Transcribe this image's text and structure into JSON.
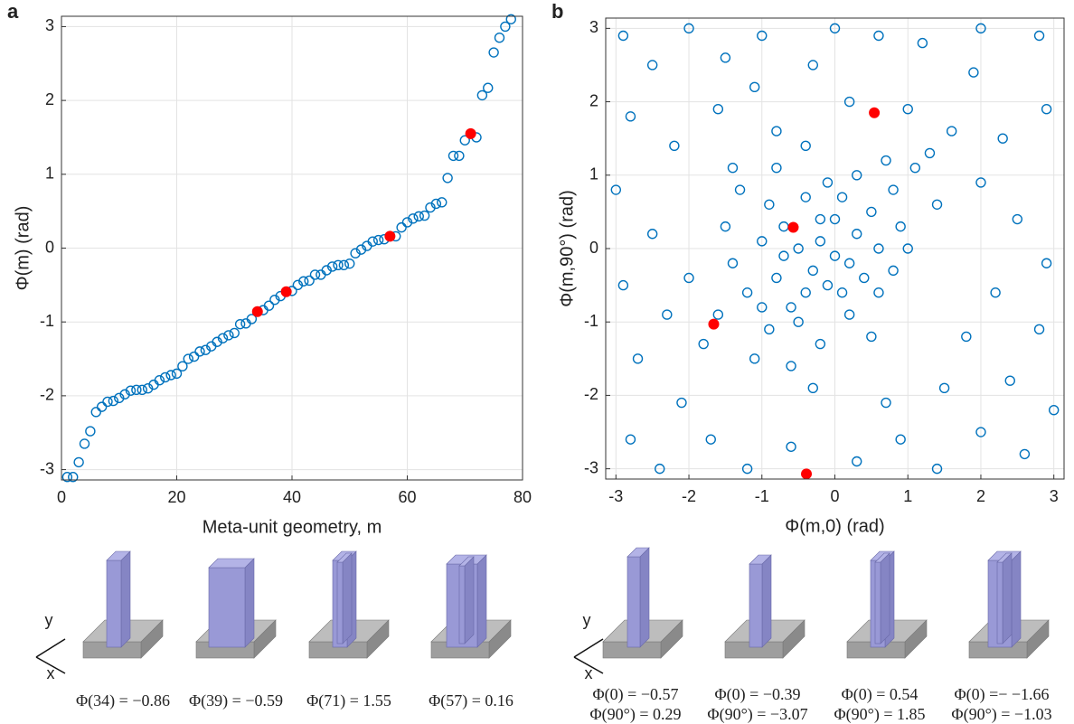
{
  "chart_data": [
    {
      "type": "scatter",
      "panel_label": "a",
      "xlabel": "Meta-unit geometry, m",
      "ylabel": "Φ(m) (rad)",
      "xlim": [
        0,
        80
      ],
      "xticks": [
        0,
        20,
        40,
        60,
        80
      ],
      "ylim": [
        -3.14,
        3.14
      ],
      "yticks": [
        -3,
        -2,
        -1,
        0,
        1,
        2,
        3
      ],
      "grid": true,
      "series": [
        {
          "color": "#0072bd",
          "filled": false,
          "x": [
            1,
            2,
            3,
            4,
            5,
            6,
            7,
            8,
            9,
            10,
            11,
            12,
            13,
            14,
            15,
            16,
            17,
            18,
            19,
            20,
            21,
            22,
            23,
            24,
            25,
            26,
            27,
            28,
            29,
            30,
            31,
            32,
            33,
            34,
            35,
            36,
            37,
            38,
            39,
            40,
            41,
            42,
            43,
            44,
            45,
            46,
            47,
            48,
            49,
            50,
            51,
            52,
            53,
            54,
            55,
            56,
            57,
            58,
            59,
            60,
            61,
            62,
            63,
            64,
            65,
            66,
            67,
            68,
            69,
            70,
            71,
            72,
            73,
            74,
            75,
            76,
            77,
            78
          ],
          "y": [
            -3.1,
            -3.1,
            -2.9,
            -2.65,
            -2.48,
            -2.22,
            -2.15,
            -2.08,
            -2.07,
            -2.03,
            -1.98,
            -1.93,
            -1.92,
            -1.92,
            -1.9,
            -1.85,
            -1.79,
            -1.75,
            -1.72,
            -1.7,
            -1.6,
            -1.5,
            -1.47,
            -1.4,
            -1.38,
            -1.33,
            -1.27,
            -1.22,
            -1.18,
            -1.15,
            -1.03,
            -1.02,
            -0.96,
            -0.86,
            -0.84,
            -0.78,
            -0.7,
            -0.65,
            -0.59,
            -0.58,
            -0.5,
            -0.45,
            -0.44,
            -0.36,
            -0.36,
            -0.3,
            -0.25,
            -0.23,
            -0.23,
            -0.21,
            -0.07,
            -0.02,
            0.03,
            0.09,
            0.11,
            0.12,
            0.16,
            0.16,
            0.28,
            0.35,
            0.4,
            0.43,
            0.44,
            0.55,
            0.6,
            0.62,
            0.95,
            1.25,
            1.25,
            1.46,
            1.55,
            1.5,
            2.07,
            2.17,
            2.65,
            2.85,
            3.0,
            3.1
          ]
        },
        {
          "color": "#ff0000",
          "filled": true,
          "x": [
            34,
            39,
            57,
            71
          ],
          "y": [
            -0.86,
            -0.59,
            0.16,
            1.55
          ]
        }
      ]
    },
    {
      "type": "scatter",
      "panel_label": "b",
      "xlabel": "Φ(m,0) (rad)",
      "ylabel": "Φ(m,90°) (rad)",
      "xlim": [
        -3.14,
        3.14
      ],
      "xticks": [
        -3,
        -2,
        -1,
        0,
        1,
        2,
        3
      ],
      "ylim": [
        -3.14,
        3.14
      ],
      "yticks": [
        -3,
        -2,
        -1,
        0,
        1,
        2,
        3
      ],
      "grid": true,
      "series": [
        {
          "color": "#0072bd",
          "filled": false,
          "x": [
            -2.9,
            -2.5,
            -2.0,
            -1.5,
            -1.0,
            0.0,
            0.6,
            1.2,
            2.0,
            2.8,
            -2.8,
            -2.2,
            -1.6,
            -0.8,
            0.2,
            1.0,
            1.6,
            2.3,
            2.9,
            -3.0,
            -2.5,
            -2.9,
            -2.3,
            -2.7,
            -2.1,
            -2.8,
            -2.4,
            -1.7,
            -1.2,
            -0.6,
            0.3,
            0.9,
            1.4,
            2.0,
            2.6,
            3.0,
            2.4,
            2.8,
            2.2,
            2.9,
            2.5,
            2.0,
            1.5,
            0.7,
            -1.1,
            -2.0,
            1.8,
            -1.4,
            1.9,
            -0.3,
            -0.5,
            -0.3,
            0.0,
            -0.8,
            -0.2,
            0.3,
            -0.6,
            0.1,
            -1.0,
            0.5,
            -0.4,
            0.2,
            -0.9,
            0.6,
            -1.2,
            0.8,
            1.1,
            1.3,
            -0.1,
            -0.7,
            0.4,
            -1.4,
            -0.2,
            0.9,
            -1.1,
            -0.6,
            0.0,
            -0.4,
            0.7,
            -0.9,
            0.3,
            -1.6,
            1.0,
            -0.3,
            0.5,
            -1.3,
            -0.8,
            0.2,
            -0.5,
            1.4,
            -1.8,
            -0.1,
            0.6,
            -0.7,
            -0.2,
            0.1,
            -1.0,
            0.8,
            -0.4,
            -1.5
          ],
          "y": [
            2.9,
            2.5,
            3.0,
            2.6,
            2.9,
            3.0,
            2.9,
            2.8,
            3.0,
            2.9,
            1.8,
            1.4,
            1.9,
            1.6,
            2.0,
            1.9,
            1.6,
            1.5,
            1.9,
            0.8,
            0.2,
            -0.5,
            -0.9,
            -1.5,
            -2.1,
            -2.6,
            -3.0,
            -2.6,
            -3.0,
            -2.7,
            -2.9,
            -2.6,
            -3.0,
            -2.5,
            -2.8,
            -2.2,
            -1.8,
            -1.1,
            -0.6,
            -0.2,
            0.4,
            0.9,
            -1.9,
            -2.1,
            2.2,
            -0.4,
            -1.2,
            1.1,
            2.4,
            2.5,
            0.0,
            -0.3,
            -0.1,
            -0.4,
            0.4,
            0.2,
            -0.8,
            -0.6,
            0.1,
            0.5,
            0.7,
            -0.9,
            -1.1,
            0.0,
            -0.6,
            0.8,
            1.1,
            1.3,
            0.9,
            0.3,
            -0.4,
            -0.2,
            -1.3,
            0.3,
            -1.5,
            -1.6,
            0.4,
            -0.6,
            1.2,
            0.6,
            1.0,
            -0.9,
            0.0,
            -1.9,
            -1.2,
            0.8,
            1.1,
            -0.2,
            -1.0,
            0.6,
            -1.3,
            -0.5,
            -0.6,
            -0.1,
            0.1,
            0.7,
            -0.8,
            -0.3,
            1.4,
            0.3
          ]
        },
        {
          "color": "#ff0000",
          "filled": true,
          "x": [
            -0.57,
            -0.39,
            0.54,
            -1.66
          ],
          "y": [
            0.29,
            -3.07,
            1.85,
            -1.03
          ]
        }
      ]
    }
  ],
  "illustrations": {
    "a": {
      "axis_labels": [
        "y",
        "x"
      ],
      "captions": [
        "Φ(34) = −0.86",
        "Φ(39) = −0.59",
        "Φ(71) = 1.55",
        "Φ(57) = 0.16"
      ]
    },
    "b": {
      "axis_labels": [
        "y",
        "x"
      ],
      "captions": [
        [
          "Φ(0) = −0.57",
          "Φ(90°) = 0.29"
        ],
        [
          "Φ(0) = −0.39",
          "Φ(90°) = −3.07"
        ],
        [
          "Φ(0) = 0.54",
          "Φ(90°) = 1.85"
        ],
        [
          "Φ(0) =− −1.66",
          "Φ(90°) = −1.03"
        ]
      ]
    }
  }
}
